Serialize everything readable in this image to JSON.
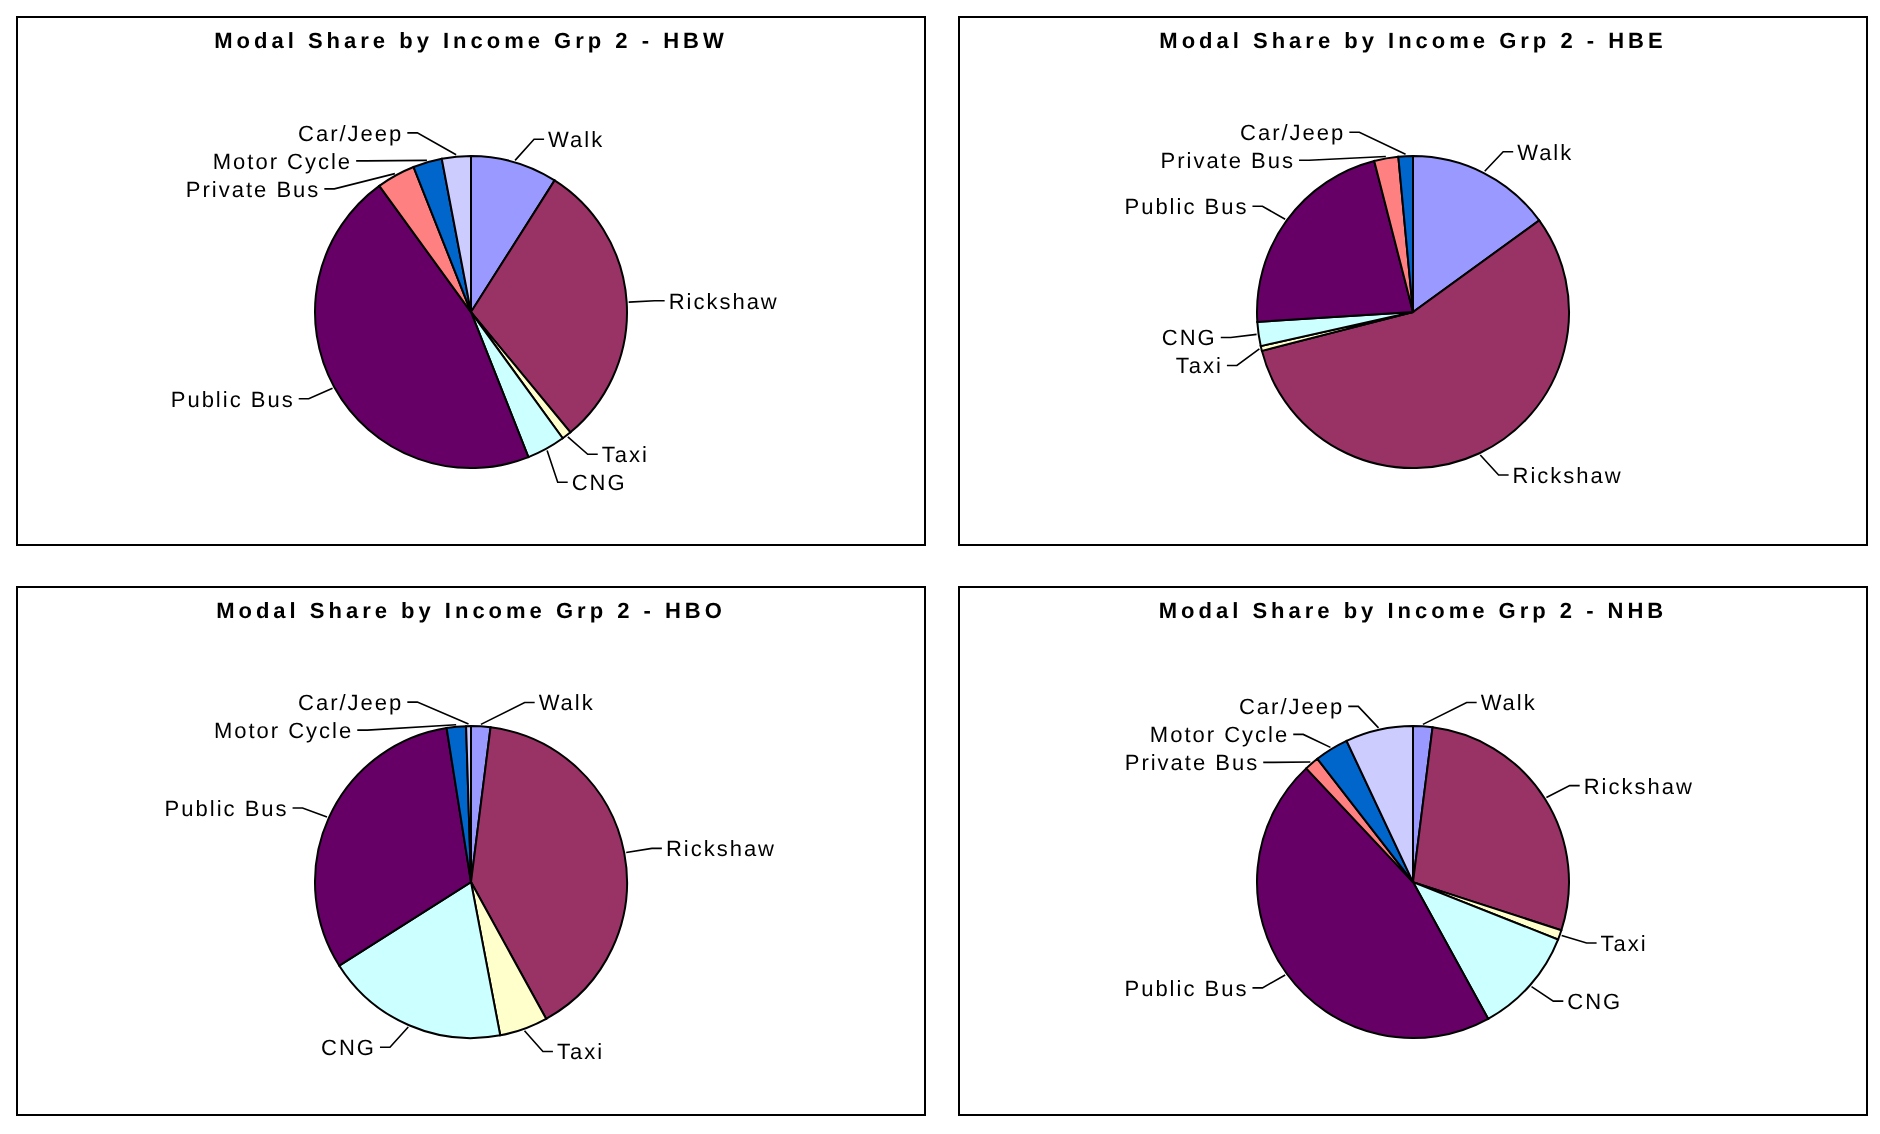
{
  "chart_data": [
    {
      "type": "pie",
      "title": "Modal Share by Income Grp 2 - HBW",
      "categories": [
        "Walk",
        "Rickshaw",
        "Taxi",
        "CNG",
        "Public Bus",
        "Private Bus",
        "Motor Cycle",
        "Car/Jeep"
      ],
      "values": [
        9,
        30,
        1,
        4,
        46,
        4,
        3,
        3
      ],
      "colors": [
        "#9999ff",
        "#993366",
        "#ffffcc",
        "#ccffff",
        "#660066",
        "#ff8080",
        "#0066cc",
        "#ccccff"
      ]
    },
    {
      "type": "pie",
      "title": "Modal Share by Income Grp 2 - HBE",
      "categories": [
        "Walk",
        "Rickshaw",
        "Taxi",
        "CNG",
        "Public Bus",
        "Private Bus",
        "Car/Jeep"
      ],
      "values": [
        15,
        56,
        0.5,
        2.5,
        22,
        2.5,
        1.5
      ],
      "colors": [
        "#9999ff",
        "#993366",
        "#ffffcc",
        "#ccffff",
        "#660066",
        "#ff8080",
        "#0066cc"
      ]
    },
    {
      "type": "pie",
      "title": "Modal Share by Income Grp 2 - HBO",
      "categories": [
        "Walk",
        "Rickshaw",
        "Taxi",
        "CNG",
        "Public Bus",
        "Motor Cycle",
        "Car/Jeep"
      ],
      "values": [
        2,
        40,
        5,
        19,
        31.5,
        2,
        0.5
      ],
      "colors": [
        "#9999ff",
        "#993366",
        "#ffffcc",
        "#ccffff",
        "#660066",
        "#0066cc",
        "#ccccff"
      ]
    },
    {
      "type": "pie",
      "title": "Modal Share by Income Grp 2 - NHB",
      "categories": [
        "Walk",
        "Rickshaw",
        "Taxi",
        "CNG",
        "Public Bus",
        "Private Bus",
        "Motor Cycle",
        "Car/Jeep"
      ],
      "values": [
        2,
        28,
        1,
        11,
        46,
        1.5,
        3.5,
        7
      ],
      "colors": [
        "#9999ff",
        "#993366",
        "#ffffcc",
        "#ccffff",
        "#660066",
        "#ff8080",
        "#0066cc",
        "#ccccff"
      ]
    }
  ]
}
